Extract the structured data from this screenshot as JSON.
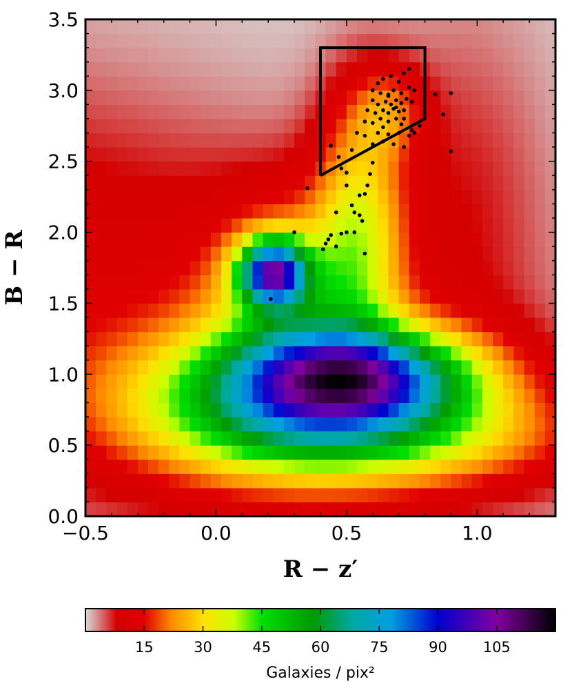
{
  "chart_data": {
    "type": "heatmap",
    "xlabel": "R − z′",
    "ylabel": "B − R",
    "xlim": [
      -0.5,
      1.3
    ],
    "ylim": [
      0.0,
      3.5
    ],
    "x_ticks": [
      "−0.5",
      "0.0",
      "0.5",
      "1.0"
    ],
    "x_tick_values": [
      -0.5,
      0.0,
      0.5,
      1.0
    ],
    "y_ticks": [
      "0.0",
      "0.5",
      "1.0",
      "1.5",
      "2.0",
      "2.5",
      "3.0",
      "3.5"
    ],
    "y_tick_values": [
      0.0,
      0.5,
      1.0,
      1.5,
      2.0,
      2.5,
      3.0,
      3.5
    ],
    "colormap": {
      "label": "Galaxies / pix²",
      "range": [
        0,
        120
      ],
      "ticks": [
        "15",
        "30",
        "45",
        "60",
        "75",
        "90",
        "105"
      ],
      "tick_values": [
        15,
        30,
        45,
        60,
        75,
        90,
        105
      ],
      "stops": [
        {
          "v": 0,
          "color": "#d9d9d9"
        },
        {
          "v": 3,
          "color": "#d68c8c"
        },
        {
          "v": 8,
          "color": "#d40000"
        },
        {
          "v": 15,
          "color": "#e00000"
        },
        {
          "v": 22,
          "color": "#ff8c00"
        },
        {
          "v": 30,
          "color": "#ffe000"
        },
        {
          "v": 38,
          "color": "#c8ff00"
        },
        {
          "v": 45,
          "color": "#00e000"
        },
        {
          "v": 58,
          "color": "#009a00"
        },
        {
          "v": 68,
          "color": "#00a8a0"
        },
        {
          "v": 78,
          "color": "#00a0e0"
        },
        {
          "v": 90,
          "color": "#0000d0"
        },
        {
          "v": 105,
          "color": "#8000a0"
        },
        {
          "v": 120,
          "color": "#000000"
        }
      ]
    },
    "density_grid": {
      "x_bins": 45,
      "y_bins": 35,
      "x_range": [
        -0.5,
        1.3
      ],
      "y_range": [
        0.0,
        3.5
      ]
    },
    "density_components": [
      {
        "x": -0.45,
        "y": 1.5,
        "sx": 0.8,
        "sy": 1.3,
        "amp": 12,
        "rot": 0.6
      },
      {
        "x": 0.95,
        "y": 2.3,
        "sx": 0.25,
        "sy": 1.0,
        "amp": 6,
        "rot": 0.0
      },
      {
        "x": 0.35,
        "y": 0.8,
        "sx": 0.45,
        "sy": 0.35,
        "amp": 55,
        "rot": 0.0
      },
      {
        "x": 0.55,
        "y": 1.0,
        "sx": 0.28,
        "sy": 0.22,
        "amp": 50,
        "rot": 0.0
      },
      {
        "x": 0.22,
        "y": 1.72,
        "sx": 0.09,
        "sy": 0.16,
        "amp": 75,
        "rot": 0.0
      },
      {
        "x": 0.3,
        "y": 1.5,
        "sx": 0.22,
        "sy": 0.5,
        "amp": 25,
        "rot": 0.0
      },
      {
        "x": 0.55,
        "y": 2.1,
        "sx": 0.12,
        "sy": 0.6,
        "amp": 25,
        "rot": 0.0
      },
      {
        "x": 0.66,
        "y": 2.85,
        "sx": 0.1,
        "sy": 0.22,
        "amp": 14,
        "rot": 0.0
      },
      {
        "x": 0.8,
        "y": 0.55,
        "sx": 0.5,
        "sy": 0.25,
        "amp": 14,
        "rot": 0.0
      }
    ],
    "selection_polygon": [
      [
        0.4,
        2.4
      ],
      [
        0.4,
        3.3
      ],
      [
        0.8,
        3.3
      ],
      [
        0.8,
        2.8
      ],
      [
        0.4,
        2.4
      ]
    ],
    "scatter": {
      "name": "",
      "points": [
        [
          0.62,
          3.05
        ],
        [
          0.64,
          3.08
        ],
        [
          0.67,
          3.1
        ],
        [
          0.7,
          3.06
        ],
        [
          0.72,
          3.12
        ],
        [
          0.74,
          3.15
        ],
        [
          0.6,
          3.0
        ],
        [
          0.63,
          2.98
        ],
        [
          0.66,
          2.97
        ],
        [
          0.68,
          3.0
        ],
        [
          0.71,
          2.98
        ],
        [
          0.74,
          3.02
        ],
        [
          0.76,
          3.0
        ],
        [
          0.6,
          2.93
        ],
        [
          0.62,
          2.9
        ],
        [
          0.65,
          2.92
        ],
        [
          0.67,
          2.9
        ],
        [
          0.69,
          2.93
        ],
        [
          0.71,
          2.91
        ],
        [
          0.73,
          2.94
        ],
        [
          0.75,
          2.92
        ],
        [
          0.58,
          2.86
        ],
        [
          0.61,
          2.84
        ],
        [
          0.64,
          2.86
        ],
        [
          0.66,
          2.84
        ],
        [
          0.68,
          2.87
        ],
        [
          0.7,
          2.85
        ],
        [
          0.72,
          2.86
        ],
        [
          0.57,
          2.78
        ],
        [
          0.6,
          2.77
        ],
        [
          0.63,
          2.8
        ],
        [
          0.66,
          2.78
        ],
        [
          0.69,
          2.8
        ],
        [
          0.71,
          2.76
        ],
        [
          0.75,
          2.72
        ],
        [
          0.62,
          2.7
        ],
        [
          0.66,
          2.69
        ],
        [
          0.7,
          2.7
        ],
        [
          0.74,
          2.68
        ],
        [
          0.57,
          2.68
        ],
        [
          0.54,
          2.7
        ],
        [
          0.6,
          2.62
        ],
        [
          0.64,
          2.64
        ],
        [
          0.68,
          2.62
        ],
        [
          0.72,
          2.6
        ],
        [
          0.76,
          2.7
        ],
        [
          0.78,
          2.75
        ],
        [
          0.84,
          2.97
        ],
        [
          0.9,
          2.98
        ],
        [
          0.87,
          2.83
        ],
        [
          0.9,
          2.57
        ],
        [
          0.44,
          2.61
        ],
        [
          0.47,
          2.53
        ],
        [
          0.52,
          2.58
        ],
        [
          0.48,
          2.45
        ],
        [
          0.5,
          2.42
        ],
        [
          0.5,
          2.33
        ],
        [
          0.55,
          2.26
        ],
        [
          0.57,
          2.27
        ],
        [
          0.58,
          2.33
        ],
        [
          0.59,
          2.41
        ],
        [
          0.6,
          2.49
        ],
        [
          0.52,
          2.19
        ],
        [
          0.53,
          2.14
        ],
        [
          0.55,
          2.12
        ],
        [
          0.56,
          2.08
        ],
        [
          0.5,
          2.0
        ],
        [
          0.53,
          2.0
        ],
        [
          0.48,
          1.99
        ],
        [
          0.46,
          2.14
        ],
        [
          0.44,
          1.98
        ],
        [
          0.43,
          1.95
        ],
        [
          0.46,
          1.9
        ],
        [
          0.42,
          1.92
        ],
        [
          0.41,
          1.88
        ],
        [
          0.3,
          2.0
        ],
        [
          0.35,
          2.31
        ],
        [
          0.21,
          1.53
        ],
        [
          0.57,
          1.85
        ],
        [
          0.66,
          2.96
        ],
        [
          0.69,
          2.88
        ],
        [
          0.64,
          2.74
        ],
        [
          0.72,
          2.8
        ]
      ]
    }
  }
}
